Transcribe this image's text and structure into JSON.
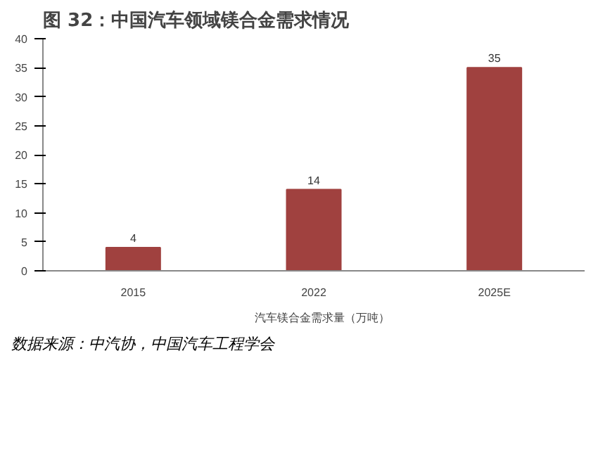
{
  "chart_data": {
    "type": "bar",
    "title": "图 32：中国汽车领域镁合金需求情况",
    "categories": [
      "2015",
      "2022",
      "2025E"
    ],
    "series": [
      {
        "name": "汽车镁合金需求量（万吨）",
        "color": "#a0413f",
        "values": [
          4,
          14,
          35
        ]
      }
    ],
    "ylim": [
      0,
      40
    ],
    "yticks": [
      0,
      5,
      10,
      15,
      20,
      25,
      30,
      35,
      40
    ],
    "grid": false,
    "legend": "bottom",
    "data_labels": true,
    "annotations": [
      "数据来源：中汽协，中国汽车工程学会"
    ]
  }
}
